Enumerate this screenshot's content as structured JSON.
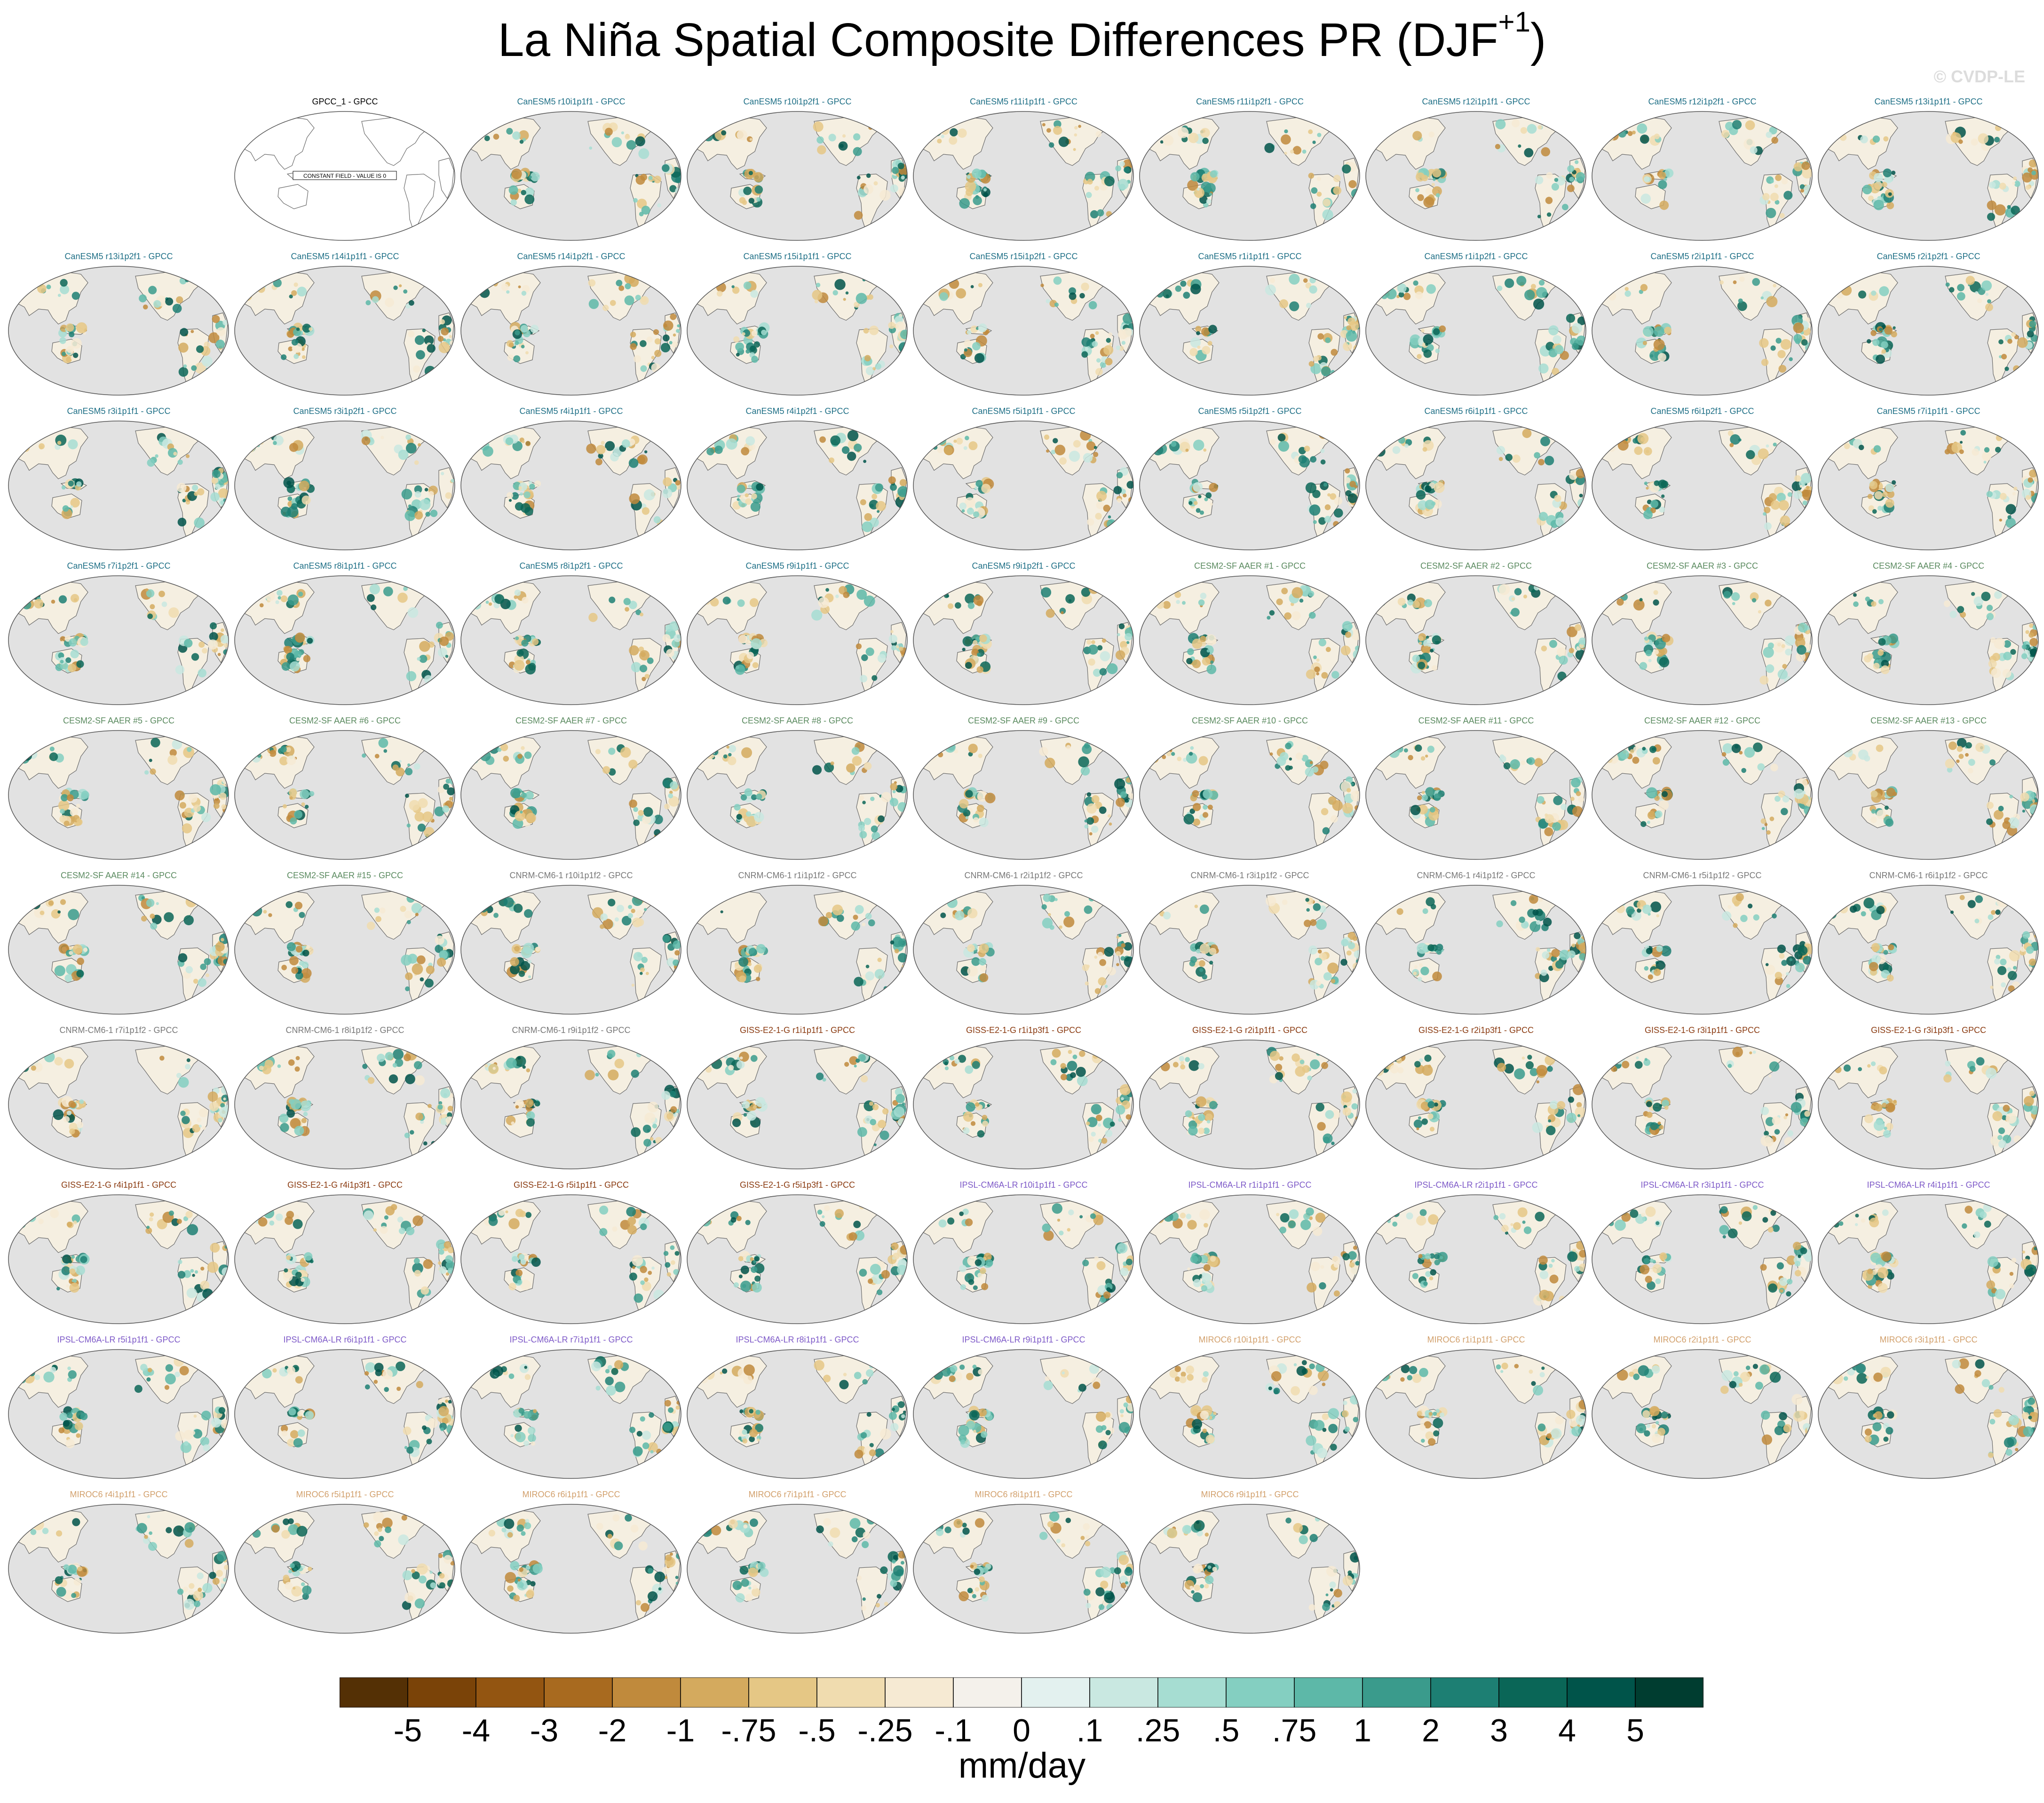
{
  "title": {
    "main": "La Niña Spatial Composite Differences PR (DJF",
    "sup": "+1",
    "close": ")"
  },
  "watermark": "© CVDP-LE",
  "units": "mm/day",
  "colorbar": {
    "labels": [
      "-5",
      "-4",
      "-3",
      "-2",
      "-1",
      "-.75",
      "-.5",
      "-.25",
      "-.1",
      "0",
      ".1",
      ".25",
      ".5",
      ".75",
      "1",
      "2",
      "3",
      "4",
      "5"
    ],
    "colors": [
      "#543005",
      "#7a4308",
      "#935511",
      "#a86a1f",
      "#c08a3c",
      "#d4aa5e",
      "#e5c785",
      "#f0dcaf",
      "#f6ead3",
      "#f4f1eb",
      "#e3f1ef",
      "#c9e8e1",
      "#a6ddd2",
      "#84cfc1",
      "#5db8a8",
      "#3a9b8c",
      "#1d7f73",
      "#0a6657",
      "#00544a",
      "#003d30"
    ]
  },
  "map": {
    "ocean_color": "#e2e2e2",
    "land_color": "#f5efe1",
    "constant_field_label": "CONSTANT FIELD - VALUE IS 0"
  },
  "family_colors": {
    "obs": "#000000",
    "CanESM5": "#1e6f86",
    "CESM2": "#5a8a5f",
    "CNRM": "#777777",
    "GISS": "#8a3a10",
    "IPSL": "#7e5ac8",
    "MIROC": "#d2a06c"
  },
  "panels": [
    {
      "title": "GPCC_1 - GPCC",
      "family": "obs",
      "empty": true
    },
    {
      "title": "CanESM5 r10i1p1f1 - GPCC",
      "family": "CanESM5"
    },
    {
      "title": "CanESM5 r10i1p2f1 - GPCC",
      "family": "CanESM5"
    },
    {
      "title": "CanESM5 r11i1p1f1 - GPCC",
      "family": "CanESM5"
    },
    {
      "title": "CanESM5 r11i1p2f1 - GPCC",
      "family": "CanESM5"
    },
    {
      "title": "CanESM5 r12i1p1f1 - GPCC",
      "family": "CanESM5"
    },
    {
      "title": "CanESM5 r12i1p2f1 - GPCC",
      "family": "CanESM5"
    },
    {
      "title": "CanESM5 r13i1p1f1 - GPCC",
      "family": "CanESM5"
    },
    {
      "title": "CanESM5 r13i1p2f1 - GPCC",
      "family": "CanESM5"
    },
    {
      "title": "CanESM5 r14i1p1f1 - GPCC",
      "family": "CanESM5"
    },
    {
      "title": "CanESM5 r14i1p2f1 - GPCC",
      "family": "CanESM5"
    },
    {
      "title": "CanESM5 r15i1p1f1 - GPCC",
      "family": "CanESM5"
    },
    {
      "title": "CanESM5 r15i1p2f1 - GPCC",
      "family": "CanESM5"
    },
    {
      "title": "CanESM5 r1i1p1f1 - GPCC",
      "family": "CanESM5"
    },
    {
      "title": "CanESM5 r1i1p2f1 - GPCC",
      "family": "CanESM5"
    },
    {
      "title": "CanESM5 r2i1p1f1 - GPCC",
      "family": "CanESM5"
    },
    {
      "title": "CanESM5 r2i1p2f1 - GPCC",
      "family": "CanESM5"
    },
    {
      "title": "CanESM5 r3i1p1f1 - GPCC",
      "family": "CanESM5"
    },
    {
      "title": "CanESM5 r3i1p2f1 - GPCC",
      "family": "CanESM5"
    },
    {
      "title": "CanESM5 r4i1p1f1 - GPCC",
      "family": "CanESM5"
    },
    {
      "title": "CanESM5 r4i1p2f1 - GPCC",
      "family": "CanESM5"
    },
    {
      "title": "CanESM5 r5i1p1f1 - GPCC",
      "family": "CanESM5"
    },
    {
      "title": "CanESM5 r5i1p2f1 - GPCC",
      "family": "CanESM5"
    },
    {
      "title": "CanESM5 r6i1p1f1 - GPCC",
      "family": "CanESM5"
    },
    {
      "title": "CanESM5 r6i1p2f1 - GPCC",
      "family": "CanESM5"
    },
    {
      "title": "CanESM5 r7i1p1f1 - GPCC",
      "family": "CanESM5"
    },
    {
      "title": "CanESM5 r7i1p2f1 - GPCC",
      "family": "CanESM5"
    },
    {
      "title": "CanESM5 r8i1p1f1 - GPCC",
      "family": "CanESM5"
    },
    {
      "title": "CanESM5 r8i1p2f1 - GPCC",
      "family": "CanESM5"
    },
    {
      "title": "CanESM5 r9i1p1f1 - GPCC",
      "family": "CanESM5"
    },
    {
      "title": "CanESM5 r9i1p2f1 - GPCC",
      "family": "CanESM5"
    },
    {
      "title": "CESM2-SF AAER #1 - GPCC",
      "family": "CESM2"
    },
    {
      "title": "CESM2-SF AAER #2 - GPCC",
      "family": "CESM2"
    },
    {
      "title": "CESM2-SF AAER #3 - GPCC",
      "family": "CESM2"
    },
    {
      "title": "CESM2-SF AAER #4 - GPCC",
      "family": "CESM2"
    },
    {
      "title": "CESM2-SF AAER #5 - GPCC",
      "family": "CESM2"
    },
    {
      "title": "CESM2-SF AAER #6 - GPCC",
      "family": "CESM2"
    },
    {
      "title": "CESM2-SF AAER #7 - GPCC",
      "family": "CESM2"
    },
    {
      "title": "CESM2-SF AAER #8 - GPCC",
      "family": "CESM2"
    },
    {
      "title": "CESM2-SF AAER #9 - GPCC",
      "family": "CESM2"
    },
    {
      "title": "CESM2-SF AAER #10 - GPCC",
      "family": "CESM2"
    },
    {
      "title": "CESM2-SF AAER #11 - GPCC",
      "family": "CESM2"
    },
    {
      "title": "CESM2-SF AAER #12 - GPCC",
      "family": "CESM2"
    },
    {
      "title": "CESM2-SF AAER #13 - GPCC",
      "family": "CESM2"
    },
    {
      "title": "CESM2-SF AAER #14 - GPCC",
      "family": "CESM2"
    },
    {
      "title": "CESM2-SF AAER #15 - GPCC",
      "family": "CESM2"
    },
    {
      "title": "CNRM-CM6-1 r10i1p1f2 - GPCC",
      "family": "CNRM"
    },
    {
      "title": "CNRM-CM6-1 r1i1p1f2 - GPCC",
      "family": "CNRM"
    },
    {
      "title": "CNRM-CM6-1 r2i1p1f2 - GPCC",
      "family": "CNRM"
    },
    {
      "title": "CNRM-CM6-1 r3i1p1f2 - GPCC",
      "family": "CNRM"
    },
    {
      "title": "CNRM-CM6-1 r4i1p1f2 - GPCC",
      "family": "CNRM"
    },
    {
      "title": "CNRM-CM6-1 r5i1p1f2 - GPCC",
      "family": "CNRM"
    },
    {
      "title": "CNRM-CM6-1 r6i1p1f2 - GPCC",
      "family": "CNRM"
    },
    {
      "title": "CNRM-CM6-1 r7i1p1f2 - GPCC",
      "family": "CNRM"
    },
    {
      "title": "CNRM-CM6-1 r8i1p1f2 - GPCC",
      "family": "CNRM"
    },
    {
      "title": "CNRM-CM6-1 r9i1p1f2 - GPCC",
      "family": "CNRM"
    },
    {
      "title": "GISS-E2-1-G r1i1p1f1 - GPCC",
      "family": "GISS"
    },
    {
      "title": "GISS-E2-1-G r1i1p3f1 - GPCC",
      "family": "GISS"
    },
    {
      "title": "GISS-E2-1-G r2i1p1f1 - GPCC",
      "family": "GISS"
    },
    {
      "title": "GISS-E2-1-G r2i1p3f1 - GPCC",
      "family": "GISS"
    },
    {
      "title": "GISS-E2-1-G r3i1p1f1 - GPCC",
      "family": "GISS"
    },
    {
      "title": "GISS-E2-1-G r3i1p3f1 - GPCC",
      "family": "GISS"
    },
    {
      "title": "GISS-E2-1-G r4i1p1f1 - GPCC",
      "family": "GISS"
    },
    {
      "title": "GISS-E2-1-G r4i1p3f1 - GPCC",
      "family": "GISS"
    },
    {
      "title": "GISS-E2-1-G r5i1p1f1 - GPCC",
      "family": "GISS"
    },
    {
      "title": "GISS-E2-1-G r5i1p3f1 - GPCC",
      "family": "GISS"
    },
    {
      "title": "IPSL-CM6A-LR r10i1p1f1 - GPCC",
      "family": "IPSL"
    },
    {
      "title": "IPSL-CM6A-LR r1i1p1f1 - GPCC",
      "family": "IPSL"
    },
    {
      "title": "IPSL-CM6A-LR r2i1p1f1 - GPCC",
      "family": "IPSL"
    },
    {
      "title": "IPSL-CM6A-LR r3i1p1f1 - GPCC",
      "family": "IPSL"
    },
    {
      "title": "IPSL-CM6A-LR r4i1p1f1 - GPCC",
      "family": "IPSL"
    },
    {
      "title": "IPSL-CM6A-LR r5i1p1f1 - GPCC",
      "family": "IPSL"
    },
    {
      "title": "IPSL-CM6A-LR r6i1p1f1 - GPCC",
      "family": "IPSL"
    },
    {
      "title": "IPSL-CM6A-LR r7i1p1f1 - GPCC",
      "family": "IPSL"
    },
    {
      "title": "IPSL-CM6A-LR r8i1p1f1 - GPCC",
      "family": "IPSL"
    },
    {
      "title": "IPSL-CM6A-LR r9i1p1f1 - GPCC",
      "family": "IPSL"
    },
    {
      "title": "MIROC6 r10i1p1f1 - GPCC",
      "family": "MIROC"
    },
    {
      "title": "MIROC6 r1i1p1f1 - GPCC",
      "family": "MIROC"
    },
    {
      "title": "MIROC6 r2i1p1f1 - GPCC",
      "family": "MIROC"
    },
    {
      "title": "MIROC6 r3i1p1f1 - GPCC",
      "family": "MIROC"
    },
    {
      "title": "MIROC6 r4i1p1f1 - GPCC",
      "family": "MIROC"
    },
    {
      "title": "MIROC6 r5i1p1f1 - GPCC",
      "family": "MIROC"
    },
    {
      "title": "MIROC6 r6i1p1f1 - GPCC",
      "family": "MIROC"
    },
    {
      "title": "MIROC6 r7i1p1f1 - GPCC",
      "family": "MIROC"
    },
    {
      "title": "MIROC6 r8i1p1f1 - GPCC",
      "family": "MIROC"
    },
    {
      "title": "MIROC6 r9i1p1f1 - GPCC",
      "family": "MIROC"
    }
  ]
}
